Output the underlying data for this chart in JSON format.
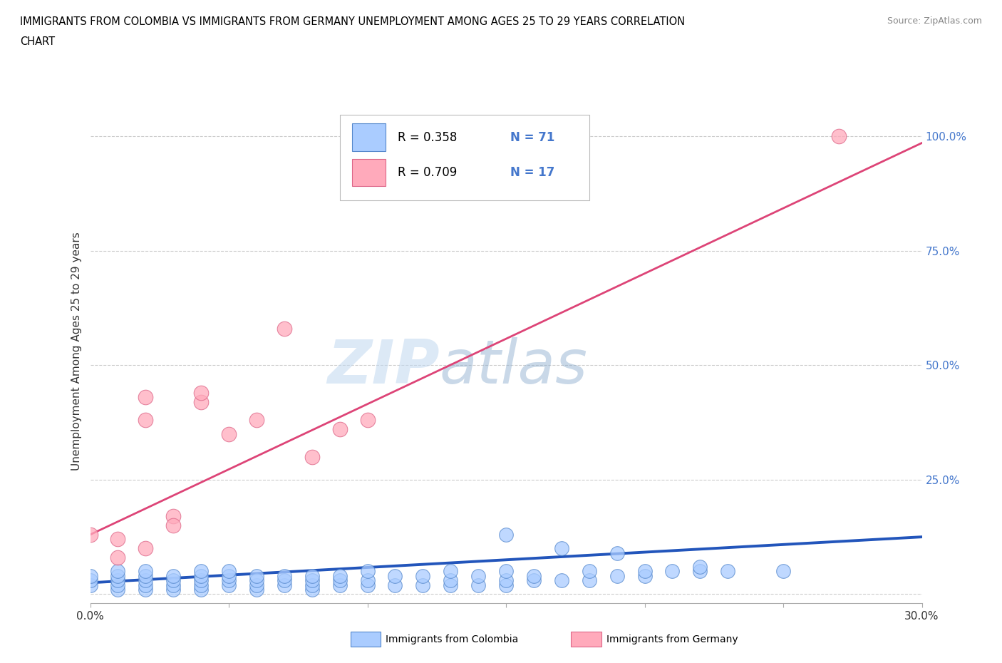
{
  "title_line1": "IMMIGRANTS FROM COLOMBIA VS IMMIGRANTS FROM GERMANY UNEMPLOYMENT AMONG AGES 25 TO 29 YEARS CORRELATION",
  "title_line2": "CHART",
  "source_text": "Source: ZipAtlas.com",
  "ylabel": "Unemployment Among Ages 25 to 29 years",
  "xlim": [
    0.0,
    0.3
  ],
  "ylim": [
    -0.02,
    1.08
  ],
  "xticks": [
    0.0,
    0.05,
    0.1,
    0.15,
    0.2,
    0.25,
    0.3
  ],
  "xtick_labels": [
    "0.0%",
    "",
    "",
    "",
    "",
    "",
    "30.0%"
  ],
  "ytick_positions": [
    0.0,
    0.25,
    0.5,
    0.75,
    1.0
  ],
  "ytick_labels": [
    "",
    "25.0%",
    "50.0%",
    "75.0%",
    "100.0%"
  ],
  "colombia_color": "#aaccff",
  "colombia_edge": "#5588cc",
  "germany_color": "#ffaabb",
  "germany_edge": "#dd6688",
  "blue_line_color": "#2255bb",
  "pink_line_color": "#dd4477",
  "legend_r1": "R = 0.358",
  "legend_n1": "N = 71",
  "legend_r2": "R = 0.709",
  "legend_n2": "N = 17",
  "watermark_zip": "ZIP",
  "watermark_atlas": "atlas",
  "colombia_scatter_x": [
    0.0,
    0.0,
    0.0,
    0.01,
    0.01,
    0.01,
    0.01,
    0.01,
    0.02,
    0.02,
    0.02,
    0.02,
    0.02,
    0.03,
    0.03,
    0.03,
    0.03,
    0.04,
    0.04,
    0.04,
    0.04,
    0.04,
    0.05,
    0.05,
    0.05,
    0.05,
    0.06,
    0.06,
    0.06,
    0.06,
    0.07,
    0.07,
    0.07,
    0.08,
    0.08,
    0.08,
    0.08,
    0.09,
    0.09,
    0.09,
    0.1,
    0.1,
    0.1,
    0.11,
    0.11,
    0.12,
    0.12,
    0.13,
    0.13,
    0.13,
    0.14,
    0.14,
    0.15,
    0.15,
    0.15,
    0.16,
    0.16,
    0.17,
    0.18,
    0.18,
    0.19,
    0.2,
    0.2,
    0.21,
    0.22,
    0.23,
    0.15,
    0.17,
    0.19,
    0.22,
    0.25
  ],
  "colombia_scatter_y": [
    0.02,
    0.03,
    0.04,
    0.01,
    0.02,
    0.03,
    0.04,
    0.05,
    0.01,
    0.02,
    0.03,
    0.04,
    0.05,
    0.01,
    0.02,
    0.03,
    0.04,
    0.01,
    0.02,
    0.03,
    0.04,
    0.05,
    0.02,
    0.03,
    0.04,
    0.05,
    0.01,
    0.02,
    0.03,
    0.04,
    0.02,
    0.03,
    0.04,
    0.01,
    0.02,
    0.03,
    0.04,
    0.02,
    0.03,
    0.04,
    0.02,
    0.03,
    0.05,
    0.02,
    0.04,
    0.02,
    0.04,
    0.02,
    0.03,
    0.05,
    0.02,
    0.04,
    0.02,
    0.03,
    0.05,
    0.03,
    0.04,
    0.03,
    0.03,
    0.05,
    0.04,
    0.04,
    0.05,
    0.05,
    0.05,
    0.05,
    0.13,
    0.1,
    0.09,
    0.06,
    0.05
  ],
  "germany_scatter_x": [
    0.0,
    0.01,
    0.01,
    0.02,
    0.02,
    0.02,
    0.03,
    0.04,
    0.04,
    0.05,
    0.06,
    0.07,
    0.08,
    0.09,
    0.1,
    0.27,
    0.03
  ],
  "germany_scatter_y": [
    0.13,
    0.08,
    0.12,
    0.38,
    0.43,
    0.1,
    0.17,
    0.42,
    0.44,
    0.35,
    0.38,
    0.58,
    0.3,
    0.36,
    0.38,
    1.0,
    0.15
  ],
  "blue_line_x": [
    0.0,
    0.3
  ],
  "blue_line_y": [
    0.025,
    0.125
  ],
  "pink_line_x": [
    0.0,
    0.3
  ],
  "pink_line_y": [
    0.13,
    0.985
  ],
  "background_color": "#ffffff",
  "grid_color": "#cccccc"
}
